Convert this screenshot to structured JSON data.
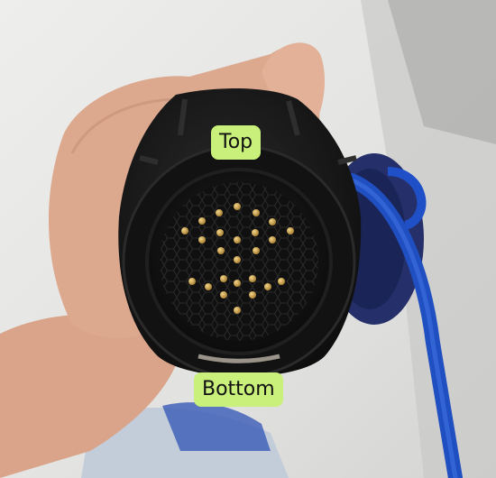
{
  "labels": {
    "top": "Top",
    "bottom": "Bottom"
  },
  "colors": {
    "label_background": "#c8f07a",
    "connector_body": "#161616",
    "pins": "#c9a24a",
    "cable": "#1f4fc0",
    "desk": "#e9e9e7",
    "skin": "#dba78f"
  }
}
